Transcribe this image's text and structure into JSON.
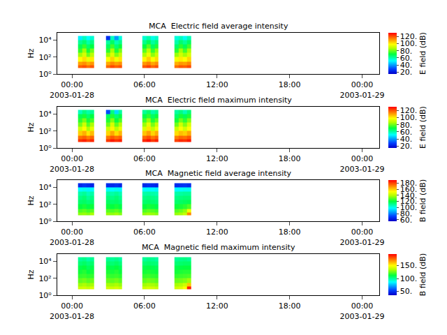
{
  "chart_data": [
    {
      "type": "heatmap",
      "title": "MCA  Electric field average intensity",
      "ylabel": "Hz",
      "log": "y",
      "grid": false,
      "x": [
        "2003-01-28 00:30",
        "2003-01-28 00:50",
        "2003-01-28 01:10",
        "2003-01-28 01:30",
        "2003-01-28 01:50",
        "2003-01-28 02:50",
        "2003-01-28 03:10",
        "2003-01-28 03:30",
        "2003-01-28 03:50",
        "2003-01-28 04:10",
        "2003-01-28 05:50",
        "2003-01-28 06:10",
        "2003-01-28 06:30",
        "2003-01-28 06:50",
        "2003-01-28 07:10",
        "2003-01-28 08:30",
        "2003-01-28 08:50",
        "2003-01-28 09:10",
        "2003-01-28 09:30",
        "2003-01-28 09:50"
      ],
      "y": [
        5,
        10,
        30,
        100,
        300,
        1000,
        3000,
        10000,
        30000
      ],
      "cells": [
        [
          118,
          120,
          116,
          119,
          null,
          117,
          121,
          118,
          120,
          null,
          119,
          122,
          117,
          120,
          null,
          116,
          119,
          118,
          121
        ],
        [
          110,
          112,
          108,
          111,
          null,
          109,
          113,
          110,
          112,
          null,
          111,
          114,
          109,
          112,
          null,
          108,
          111,
          110,
          113
        ],
        [
          98,
          102,
          95,
          100,
          null,
          97,
          103,
          96,
          101,
          null,
          99,
          104,
          97,
          102,
          null,
          96,
          100,
          98,
          103
        ],
        [
          85,
          92,
          80,
          88,
          null,
          84,
          93,
          82,
          89,
          null,
          86,
          95,
          83,
          90,
          null,
          84,
          91,
          85,
          92
        ],
        [
          75,
          85,
          72,
          80,
          null,
          74,
          86,
          73,
          81,
          null,
          78,
          88,
          75,
          84,
          null,
          74,
          85,
          76,
          86
        ],
        [
          68,
          75,
          66,
          70,
          null,
          67,
          76,
          65,
          71,
          null,
          70,
          78,
          67,
          73,
          null,
          66,
          74,
          68,
          76
        ],
        [
          62,
          66,
          60,
          64,
          null,
          61,
          67,
          59,
          63,
          null,
          63,
          68,
          61,
          65,
          null,
          60,
          66,
          62,
          67
        ],
        [
          50,
          58,
          52,
          56,
          null,
          25,
          58,
          40,
          55,
          null,
          56,
          60,
          54,
          57,
          null,
          55,
          58,
          53,
          59
        ]
      ],
      "xlim": [
        "2003-01-27 22:47",
        "2003-01-29 01:25"
      ],
      "xticks": [
        {
          "value": "2003-01-28 00:00",
          "label": "00:00\n2003-01-28"
        },
        {
          "value": "2003-01-28 06:00",
          "label": "06:00"
        },
        {
          "value": "2003-01-28 12:00",
          "label": "12:00"
        },
        {
          "value": "2003-01-28 18:00",
          "label": "18:00"
        },
        {
          "value": "2003-01-29 00:00",
          "label": "00:00\n2003-01-29"
        }
      ],
      "ylim": [
        1,
        70000
      ],
      "yticks": [
        {
          "value": 1,
          "label": "10⁰"
        },
        {
          "value": 100,
          "label": "10²"
        },
        {
          "value": 10000,
          "label": "10⁴"
        }
      ],
      "colorbar": {
        "label": "E field (dB)",
        "range": [
          15,
          130
        ],
        "ticks": [
          {
            "value": 20,
            "label": "20."
          },
          {
            "value": 40,
            "label": "40."
          },
          {
            "value": 60,
            "label": "60."
          },
          {
            "value": 80,
            "label": "80."
          },
          {
            "value": 100,
            "label": "100."
          },
          {
            "value": 120,
            "label": "120."
          }
        ]
      }
    },
    {
      "type": "heatmap",
      "title": "MCA  Electric field maximum intensity",
      "ylabel": "Hz",
      "log": "y",
      "grid": false,
      "x": [
        "2003-01-28 00:30",
        "2003-01-28 00:50",
        "2003-01-28 01:10",
        "2003-01-28 01:30",
        "2003-01-28 01:50",
        "2003-01-28 02:50",
        "2003-01-28 03:10",
        "2003-01-28 03:30",
        "2003-01-28 03:50",
        "2003-01-28 04:10",
        "2003-01-28 05:50",
        "2003-01-28 06:10",
        "2003-01-28 06:30",
        "2003-01-28 06:50",
        "2003-01-28 07:10",
        "2003-01-28 08:30",
        "2003-01-28 08:50",
        "2003-01-28 09:10",
        "2003-01-28 09:30",
        "2003-01-28 09:50"
      ],
      "y": [
        5,
        10,
        30,
        100,
        300,
        1000,
        3000,
        10000,
        30000
      ],
      "cells": [
        [
          124,
          126,
          122,
          125,
          null,
          123,
          127,
          124,
          126,
          null,
          125,
          128,
          123,
          126,
          null,
          122,
          125,
          124,
          127
        ],
        [
          116,
          118,
          114,
          117,
          null,
          115,
          119,
          116,
          118,
          null,
          117,
          120,
          115,
          118,
          null,
          114,
          117,
          116,
          119
        ],
        [
          104,
          108,
          101,
          106,
          null,
          103,
          109,
          102,
          107,
          null,
          105,
          110,
          103,
          108,
          null,
          102,
          106,
          104,
          109
        ],
        [
          91,
          98,
          86,
          94,
          null,
          90,
          99,
          88,
          95,
          null,
          92,
          101,
          89,
          96,
          null,
          90,
          97,
          91,
          98
        ],
        [
          81,
          91,
          78,
          86,
          null,
          80,
          92,
          79,
          87,
          null,
          84,
          94,
          81,
          90,
          null,
          80,
          91,
          82,
          92
        ],
        [
          74,
          81,
          72,
          76,
          null,
          73,
          82,
          71,
          77,
          null,
          76,
          84,
          73,
          79,
          null,
          72,
          80,
          74,
          82
        ],
        [
          68,
          72,
          66,
          70,
          null,
          67,
          73,
          65,
          69,
          null,
          69,
          74,
          67,
          71,
          null,
          66,
          72,
          68,
          73
        ],
        [
          58,
          64,
          60,
          62,
          null,
          30,
          64,
          48,
          61,
          null,
          62,
          66,
          60,
          63,
          null,
          61,
          64,
          59,
          65
        ]
      ],
      "xlim": [
        "2003-01-27 22:47",
        "2003-01-29 01:25"
      ],
      "xticks": [
        {
          "value": "2003-01-28 00:00",
          "label": "00:00\n2003-01-28"
        },
        {
          "value": "2003-01-28 06:00",
          "label": "06:00"
        },
        {
          "value": "2003-01-28 12:00",
          "label": "12:00"
        },
        {
          "value": "2003-01-28 18:00",
          "label": "18:00"
        },
        {
          "value": "2003-01-29 00:00",
          "label": "00:00\n2003-01-29"
        }
      ],
      "ylim": [
        1,
        70000
      ],
      "yticks": [
        {
          "value": 1,
          "label": "10⁰"
        },
        {
          "value": 100,
          "label": "10²"
        },
        {
          "value": 10000,
          "label": "10⁴"
        }
      ],
      "colorbar": {
        "label": "E field (dB)",
        "range": [
          15,
          130
        ],
        "ticks": [
          {
            "value": 20,
            "label": "20."
          },
          {
            "value": 40,
            "label": "40."
          },
          {
            "value": 60,
            "label": "60."
          },
          {
            "value": 80,
            "label": "80."
          },
          {
            "value": 100,
            "label": "100."
          },
          {
            "value": 120,
            "label": "120."
          }
        ]
      }
    },
    {
      "type": "heatmap",
      "title": "MCA  Magnetic field average intensity",
      "ylabel": "Hz",
      "log": "y",
      "grid": false,
      "x": [
        "2003-01-28 00:30",
        "2003-01-28 00:50",
        "2003-01-28 01:10",
        "2003-01-28 01:30",
        "2003-01-28 01:50",
        "2003-01-28 02:50",
        "2003-01-28 03:10",
        "2003-01-28 03:30",
        "2003-01-28 03:50",
        "2003-01-28 04:10",
        "2003-01-28 05:50",
        "2003-01-28 06:10",
        "2003-01-28 06:30",
        "2003-01-28 06:50",
        "2003-01-28 07:10",
        "2003-01-28 08:30",
        "2003-01-28 08:50",
        "2003-01-28 09:10",
        "2003-01-28 09:30",
        "2003-01-28 09:50"
      ],
      "y": [
        5,
        10,
        30,
        100,
        300,
        1000,
        3000,
        10000,
        30000
      ],
      "cells": [
        [
          135,
          136,
          134,
          138,
          null,
          136,
          135,
          137,
          134,
          null,
          135,
          137,
          136,
          134,
          null,
          136,
          138,
          142,
          170
        ],
        [
          128,
          130,
          127,
          129,
          null,
          129,
          128,
          130,
          127,
          null,
          128,
          130,
          129,
          127,
          null,
          129,
          131,
          135,
          150
        ],
        [
          120,
          122,
          119,
          121,
          null,
          121,
          120,
          122,
          119,
          null,
          120,
          122,
          121,
          119,
          null,
          121,
          122,
          124,
          128
        ],
        [
          115,
          116,
          114,
          115,
          null,
          116,
          115,
          116,
          114,
          null,
          115,
          116,
          115,
          114,
          null,
          115,
          116,
          117,
          118
        ],
        [
          112,
          114,
          110,
          112,
          null,
          113,
          112,
          114,
          111,
          null,
          112,
          113,
          112,
          111,
          null,
          112,
          113,
          114,
          114
        ],
        [
          108,
          110,
          106,
          108,
          null,
          109,
          108,
          110,
          107,
          null,
          108,
          109,
          108,
          107,
          null,
          108,
          109,
          110,
          110
        ],
        [
          98,
          100,
          97,
          99,
          null,
          99,
          98,
          100,
          97,
          null,
          98,
          99,
          98,
          97,
          null,
          98,
          99,
          100,
          100
        ],
        [
          65,
          68,
          66,
          64,
          null,
          66,
          65,
          67,
          64,
          null,
          65,
          67,
          66,
          64,
          null,
          66,
          67,
          68,
          66
        ]
      ],
      "xlim": [
        "2003-01-27 22:47",
        "2003-01-29 01:25"
      ],
      "xticks": [
        {
          "value": "2003-01-28 00:00",
          "label": "00:00\n2003-01-28"
        },
        {
          "value": "2003-01-28 06:00",
          "label": "06:00"
        },
        {
          "value": "2003-01-28 12:00",
          "label": "12:00"
        },
        {
          "value": "2003-01-28 18:00",
          "label": "18:00"
        },
        {
          "value": "2003-01-29 00:00",
          "label": "00:00\n2003-01-29"
        }
      ],
      "ylim": [
        1,
        70000
      ],
      "yticks": [
        {
          "value": 1,
          "label": "10⁰"
        },
        {
          "value": 100,
          "label": "10²"
        },
        {
          "value": 10000,
          "label": "10⁴"
        }
      ],
      "colorbar": {
        "label": "B field (dB)",
        "range": [
          55,
          190
        ],
        "ticks": [
          {
            "value": 60,
            "label": "60."
          },
          {
            "value": 80,
            "label": "80."
          },
          {
            "value": 100,
            "label": "100."
          },
          {
            "value": 120,
            "label": "120."
          },
          {
            "value": 140,
            "label": "140."
          },
          {
            "value": 160,
            "label": "160."
          },
          {
            "value": 180,
            "label": "180."
          }
        ]
      }
    },
    {
      "type": "heatmap",
      "title": "MCA  Magnetic field maximum intensity",
      "ylabel": "Hz",
      "log": "y",
      "grid": false,
      "x": [
        "2003-01-28 00:30",
        "2003-01-28 00:50",
        "2003-01-28 01:10",
        "2003-01-28 01:30",
        "2003-01-28 01:50",
        "2003-01-28 02:50",
        "2003-01-28 03:10",
        "2003-01-28 03:30",
        "2003-01-28 03:50",
        "2003-01-28 04:10",
        "2003-01-28 05:50",
        "2003-01-28 06:10",
        "2003-01-28 06:30",
        "2003-01-28 06:50",
        "2003-01-28 07:10",
        "2003-01-28 08:30",
        "2003-01-28 08:50",
        "2003-01-28 09:10",
        "2003-01-28 09:30",
        "2003-01-28 09:50"
      ],
      "y": [
        5,
        10,
        30,
        100,
        300,
        1000,
        3000,
        10000,
        30000
      ],
      "cells": [
        [
          140,
          141,
          139,
          142,
          null,
          141,
          140,
          142,
          139,
          null,
          140,
          142,
          141,
          139,
          null,
          141,
          143,
          150,
          190
        ],
        [
          132,
          134,
          131,
          133,
          null,
          133,
          132,
          134,
          131,
          null,
          132,
          134,
          133,
          131,
          null,
          133,
          135,
          140,
          160
        ],
        [
          124,
          126,
          123,
          125,
          null,
          125,
          124,
          126,
          123,
          null,
          124,
          126,
          125,
          123,
          null,
          125,
          126,
          128,
          132
        ],
        [
          118,
          119,
          117,
          118,
          null,
          119,
          118,
          119,
          117,
          null,
          118,
          119,
          118,
          117,
          null,
          118,
          119,
          120,
          121
        ],
        [
          114,
          116,
          112,
          114,
          null,
          115,
          114,
          116,
          113,
          null,
          114,
          115,
          114,
          113,
          null,
          114,
          115,
          116,
          116
        ],
        [
          110,
          112,
          108,
          110,
          null,
          111,
          110,
          112,
          109,
          null,
          110,
          111,
          110,
          109,
          null,
          110,
          111,
          112,
          112
        ],
        [
          105,
          107,
          104,
          106,
          null,
          106,
          105,
          107,
          104,
          null,
          105,
          106,
          105,
          104,
          null,
          105,
          106,
          107,
          107
        ],
        [
          100,
          102,
          98,
          101,
          null,
          101,
          100,
          102,
          99,
          null,
          100,
          102,
          101,
          99,
          null,
          101,
          102,
          103,
          101
        ]
      ],
      "xlim": [
        "2003-01-27 22:47",
        "2003-01-29 01:25"
      ],
      "xticks": [
        {
          "value": "2003-01-28 00:00",
          "label": "00:00\n2003-01-28"
        },
        {
          "value": "2003-01-28 06:00",
          "label": "06:00"
        },
        {
          "value": "2003-01-28 12:00",
          "label": "12:00"
        },
        {
          "value": "2003-01-28 18:00",
          "label": "18:00"
        },
        {
          "value": "2003-01-29 00:00",
          "label": "00:00\n2003-01-29"
        }
      ],
      "ylim": [
        1,
        70000
      ],
      "yticks": [
        {
          "value": 1,
          "label": "10⁰"
        },
        {
          "value": 100,
          "label": "10²"
        },
        {
          "value": 10000,
          "label": "10⁴"
        }
      ],
      "colorbar": {
        "label": "B field (dB)",
        "range": [
          35,
          195
        ],
        "ticks": [
          {
            "value": 50,
            "label": "50."
          },
          {
            "value": 100,
            "label": "100."
          },
          {
            "value": 150,
            "label": "150."
          }
        ]
      }
    }
  ]
}
